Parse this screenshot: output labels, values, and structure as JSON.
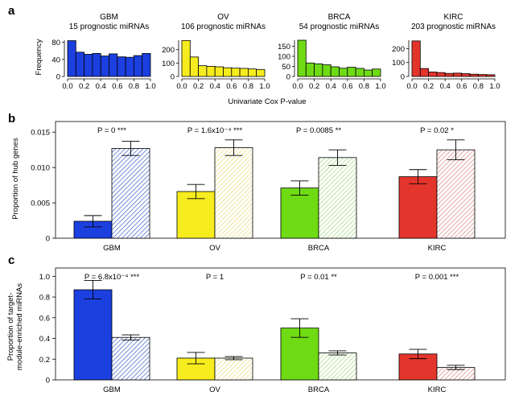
{
  "panel_letters": [
    "a",
    "b",
    "c"
  ],
  "colors": {
    "GBM": "#1c3fe0",
    "OV": "#f7ec1e",
    "BRCA": "#6fdb14",
    "KIRC": "#e4352c",
    "hatch_GBM": "#7f9cd8",
    "hatch_OV": "#f1eab2",
    "hatch_BRCA": "#bfe7a5",
    "hatch_KIRC": "#e8a6a2"
  },
  "panel_a": {
    "xlabel": "Univariate Cox P-value",
    "ylabel": "Frequency",
    "x_ticks": [
      "0.0",
      "0.2",
      "0.4",
      "0.6",
      "0.8",
      "1.0"
    ]
  },
  "panel_b": {
    "ylabel": "Proportion of hub genes",
    "y_ticks": [
      "0",
      "0.005",
      "0.010",
      "0.015"
    ]
  },
  "panel_c": {
    "ylabel_line1": "Proportion of target-",
    "ylabel_line2": "module-enriched miRNAs",
    "y_ticks": [
      "0",
      "0.2",
      "0.4",
      "0.6",
      "0.8",
      "1.0"
    ]
  },
  "chart_data": [
    {
      "type": "bar",
      "panel": "a",
      "charts": [
        {
          "name": "GBM",
          "subtitle": "15 prognostic miRNAs",
          "bins": [
            0.0,
            0.1,
            0.2,
            0.3,
            0.4,
            0.5,
            0.6,
            0.7,
            0.8,
            0.9,
            1.0
          ],
          "counts": [
            84,
            57,
            52,
            54,
            48,
            53,
            46,
            45,
            49,
            54
          ],
          "ylim": [
            0,
            85
          ],
          "y_ticks": [
            "0",
            "40",
            "80"
          ]
        },
        {
          "name": "OV",
          "subtitle": "106 prognostic miRNAs",
          "bins": [
            0.0,
            0.1,
            0.2,
            0.3,
            0.4,
            0.5,
            0.6,
            0.7,
            0.8,
            0.9,
            1.0
          ],
          "counts": [
            268,
            145,
            80,
            75,
            72,
            65,
            62,
            60,
            56,
            52
          ],
          "ylim": [
            0,
            270
          ],
          "y_ticks": [
            "0",
            "100",
            "200"
          ]
        },
        {
          "name": "BRCA",
          "subtitle": "54 prognostic miRNAs",
          "bins": [
            0.0,
            0.1,
            0.2,
            0.3,
            0.4,
            0.5,
            0.6,
            0.7,
            0.8,
            0.9,
            1.0
          ],
          "counts": [
            180,
            67,
            63,
            58,
            48,
            41,
            46,
            40,
            32,
            37
          ],
          "ylim": [
            0,
            180
          ],
          "y_ticks": [
            "0",
            "50",
            "100",
            "150"
          ]
        },
        {
          "name": "KIRC",
          "subtitle": "203 prognostic miRNAs",
          "bins": [
            0.0,
            0.1,
            0.2,
            0.3,
            0.4,
            0.5,
            0.6,
            0.7,
            0.8,
            0.9,
            1.0
          ],
          "counts": [
            255,
            57,
            32,
            28,
            22,
            24,
            20,
            16,
            14,
            12
          ],
          "ylim": [
            0,
            260
          ],
          "y_ticks": [
            "0",
            "100",
            "200"
          ]
        }
      ]
    },
    {
      "type": "bar",
      "panel": "b",
      "categories": [
        "GBM",
        "OV",
        "BRCA",
        "KIRC"
      ],
      "ylim": [
        0,
        0.0165
      ],
      "series": [
        {
          "style": "solid",
          "values": [
            0.0024,
            0.0066,
            0.0071,
            0.0087
          ],
          "errors": [
            0.0008,
            0.001,
            0.001,
            0.001
          ]
        },
        {
          "style": "hatched",
          "values": [
            0.0127,
            0.0128,
            0.0114,
            0.0125
          ],
          "errors": [
            0.001,
            0.0011,
            0.0011,
            0.0014
          ]
        }
      ],
      "annotations": [
        {
          "p": "P = 0",
          "stars": "***"
        },
        {
          "p": "P = 1.6x10⁻⁴",
          "stars": "***"
        },
        {
          "p": "P = 0.0085",
          "stars": "**"
        },
        {
          "p": "P = 0.02",
          "stars": "*"
        }
      ]
    },
    {
      "type": "bar",
      "panel": "c",
      "categories": [
        "GBM",
        "OV",
        "BRCA",
        "KIRC"
      ],
      "ylim": [
        0,
        1.08
      ],
      "series": [
        {
          "style": "solid",
          "values": [
            0.87,
            0.21,
            0.5,
            0.25
          ],
          "errors": [
            0.09,
            0.055,
            0.09,
            0.045
          ]
        },
        {
          "style": "hatched",
          "values": [
            0.41,
            0.21,
            0.26,
            0.12
          ],
          "errors": [
            0.025,
            0.015,
            0.02,
            0.02
          ]
        }
      ],
      "annotations": [
        {
          "p": "P = 6.8x10⁻⁴",
          "stars": "***"
        },
        {
          "p": "P = 1",
          "stars": ""
        },
        {
          "p": "P = 0.01",
          "stars": "**"
        },
        {
          "p": "P = 0.001",
          "stars": "***"
        }
      ]
    }
  ]
}
